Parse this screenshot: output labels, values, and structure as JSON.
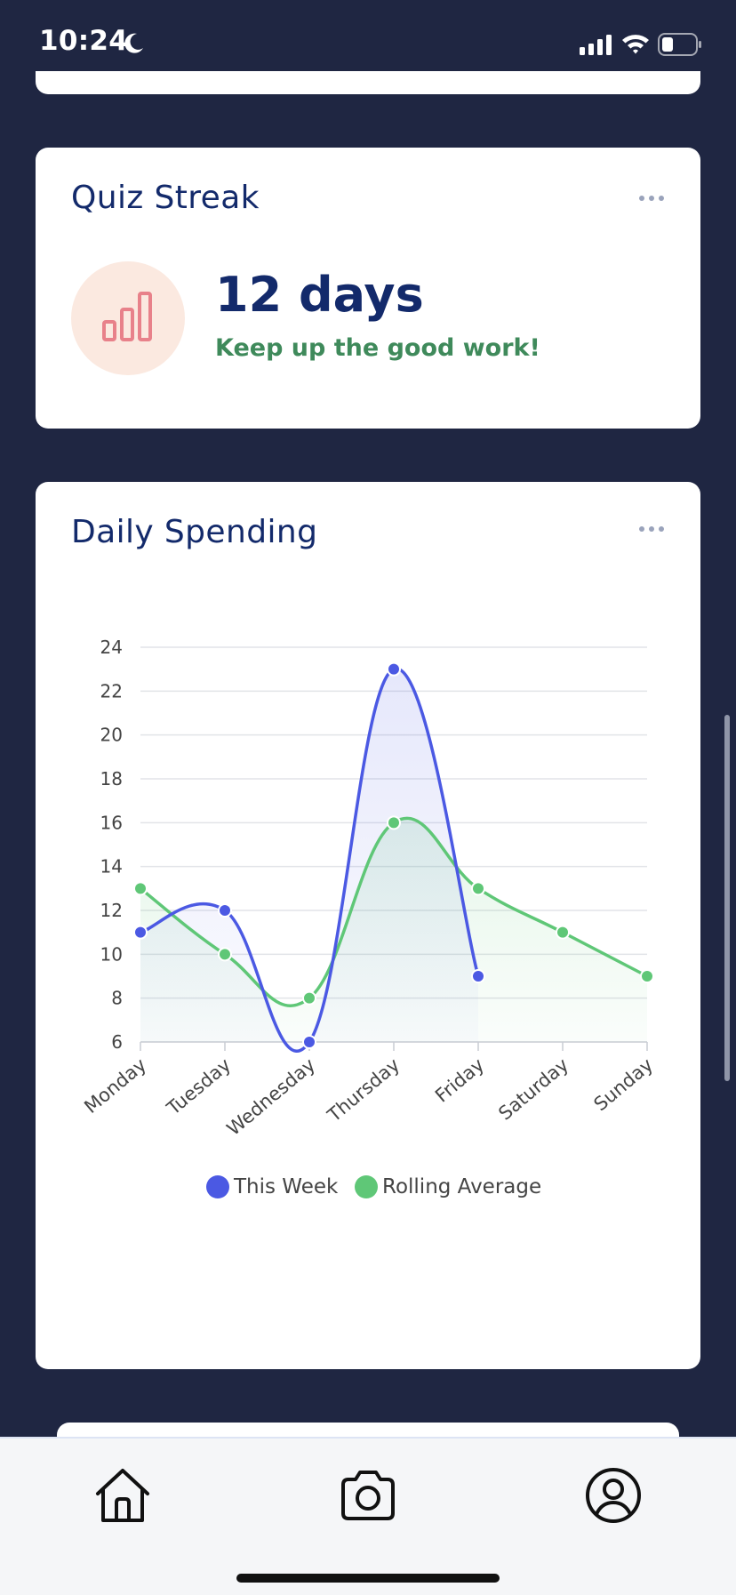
{
  "status_bar": {
    "time": "10:24"
  },
  "streak_card": {
    "title": "Quiz Streak",
    "value": "12 days",
    "message": "Keep up the good work!",
    "icon": "bar-chart-icon",
    "icon_color": "#e8818a",
    "avatar_bg": "#fbe9e0"
  },
  "spending_card": {
    "title": "Daily Spending"
  },
  "chart_data": {
    "type": "line",
    "title": "",
    "xlabel": "",
    "ylabel": "",
    "categories": [
      "Monday",
      "Tuesday",
      "Wednesday",
      "Thursday",
      "Friday",
      "Saturday",
      "Sunday"
    ],
    "ylim": [
      6,
      24
    ],
    "yticks": [
      6,
      8,
      10,
      12,
      14,
      16,
      18,
      20,
      22,
      24
    ],
    "grid": true,
    "legend": "bottom",
    "series": [
      {
        "name": "This Week",
        "color": "#4b59e3",
        "values": [
          11,
          12,
          6,
          23,
          9,
          null,
          null
        ]
      },
      {
        "name": "Rolling Average",
        "color": "#5fc777",
        "values": [
          13,
          10,
          8,
          16,
          13,
          11,
          9
        ]
      }
    ]
  },
  "tab_bar": {
    "items": [
      "home-icon",
      "camera-icon",
      "profile-icon"
    ]
  },
  "colors": {
    "background": "#1f2642",
    "card": "#ffffff",
    "title": "#132a6b",
    "accent_green": "#3f8a5b"
  }
}
